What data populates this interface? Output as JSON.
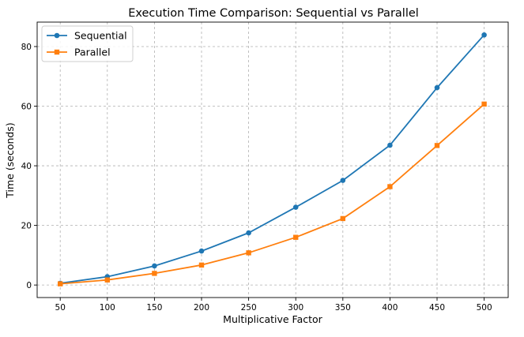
{
  "chart_data": {
    "type": "line",
    "title": "Execution Time Comparison: Sequential vs Parallel",
    "xlabel": "Multiplicative Factor",
    "ylabel": "Time (seconds)",
    "x": [
      50,
      100,
      150,
      200,
      250,
      300,
      350,
      400,
      450,
      500
    ],
    "xticks": [
      50,
      100,
      150,
      200,
      250,
      300,
      350,
      400,
      450,
      500
    ],
    "yticks": [
      0,
      20,
      40,
      60,
      80
    ],
    "xlim": [
      25.5,
      525.5
    ],
    "ylim": [
      -4.2,
      88.2
    ],
    "grid": true,
    "legend_position": "top-left",
    "series": [
      {
        "name": "Sequential",
        "color": "#1f77b4",
        "marker": "circle",
        "values": [
          0.6,
          2.8,
          6.4,
          11.4,
          17.5,
          26.1,
          35.1,
          46.9,
          66.2,
          83.9
        ]
      },
      {
        "name": "Parallel",
        "color": "#ff7f0e",
        "marker": "square",
        "values": [
          0.4,
          1.7,
          3.9,
          6.7,
          10.8,
          16.0,
          22.3,
          33.0,
          46.8,
          60.7
        ]
      }
    ]
  }
}
